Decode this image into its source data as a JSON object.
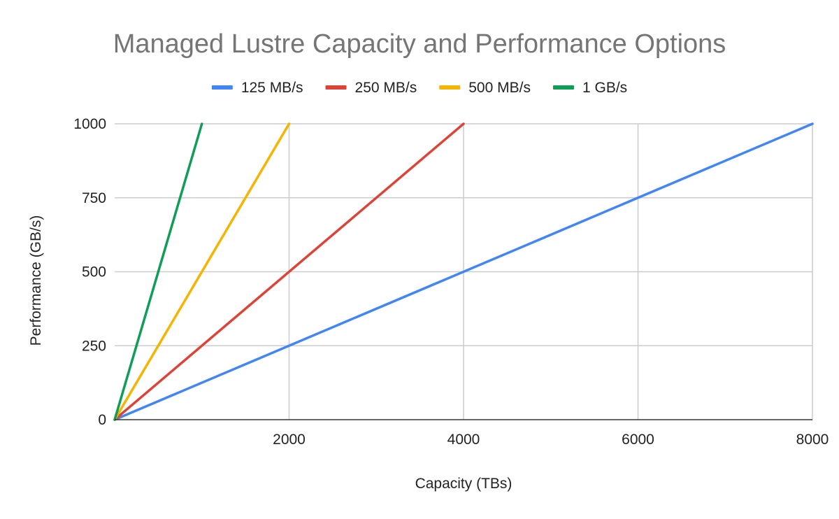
{
  "chart_data": {
    "type": "line",
    "title": "Managed Lustre Capacity and Performance Options",
    "xlabel": "Capacity (TBs)",
    "ylabel": "Performance (GB/s)",
    "xlim": [
      0,
      8000
    ],
    "ylim": [
      0,
      1000
    ],
    "x_ticks": [
      2000,
      4000,
      6000,
      8000
    ],
    "y_ticks": [
      0,
      250,
      500,
      750,
      1000
    ],
    "grid": true,
    "legend_position": "top",
    "series": [
      {
        "name": "125 MB/s",
        "color": "#4285F4",
        "x": [
          0,
          8000
        ],
        "y": [
          0,
          1000
        ]
      },
      {
        "name": "250 MB/s",
        "color": "#DB4437",
        "x": [
          0,
          4000
        ],
        "y": [
          0,
          1000
        ]
      },
      {
        "name": "500 MB/s",
        "color": "#F4B400",
        "x": [
          0,
          2000
        ],
        "y": [
          0,
          1000
        ]
      },
      {
        "name": "1 GB/s",
        "color": "#0F9D58",
        "x": [
          0,
          1000
        ],
        "y": [
          0,
          1000
        ]
      }
    ]
  }
}
